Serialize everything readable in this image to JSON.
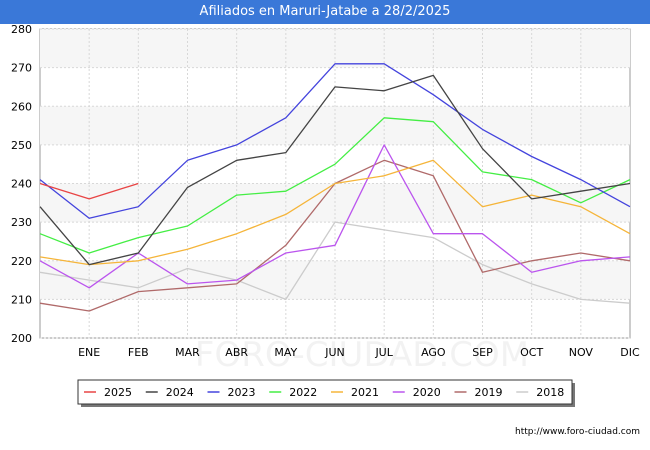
{
  "title": "Afiliados en Maruri-Jatabe a 28/2/2025",
  "source": "http://www.foro-ciudad.com",
  "watermark": "FORO-CIUDAD.COM",
  "chart_data": {
    "type": "line",
    "title": "Afiliados en Maruri-Jatabe a 28/2/2025",
    "x": [
      "",
      "ENE",
      "FEB",
      "MAR",
      "ABR",
      "MAY",
      "JUN",
      "JUL",
      "AGO",
      "SEP",
      "OCT",
      "NOV",
      "DIC"
    ],
    "ylim": [
      200,
      280
    ],
    "yticks": [
      200,
      210,
      220,
      230,
      240,
      250,
      260,
      270,
      280
    ],
    "grid": true,
    "legend_position": "bottom",
    "series": [
      {
        "name": "2025",
        "color": "#e84444",
        "values": [
          240,
          236,
          240,
          null,
          null,
          null,
          null,
          null,
          null,
          null,
          null,
          null,
          null
        ]
      },
      {
        "name": "2024",
        "color": "#444444",
        "values": [
          234,
          219,
          222,
          239,
          246,
          248,
          265,
          264,
          268,
          249,
          236,
          238,
          240
        ]
      },
      {
        "name": "2023",
        "color": "#4444dd",
        "values": [
          241,
          231,
          234,
          246,
          250,
          257,
          271,
          271,
          263,
          254,
          247,
          241,
          234
        ]
      },
      {
        "name": "2022",
        "color": "#44ee44",
        "values": [
          227,
          222,
          226,
          229,
          237,
          238,
          245,
          257,
          256,
          243,
          241,
          235,
          241
        ]
      },
      {
        "name": "2021",
        "color": "#f5b53a",
        "values": [
          221,
          219,
          220,
          223,
          227,
          232,
          240,
          242,
          246,
          234,
          237,
          234,
          227
        ]
      },
      {
        "name": "2020",
        "color": "#bb55ee",
        "values": [
          220,
          213,
          222,
          214,
          215,
          222,
          224,
          250,
          227,
          227,
          217,
          220,
          221
        ]
      },
      {
        "name": "2019",
        "color": "#b06a6a",
        "values": [
          209,
          207,
          212,
          213,
          214,
          224,
          240,
          246,
          242,
          217,
          220,
          222,
          220
        ]
      },
      {
        "name": "2018",
        "color": "#cccccc",
        "values": [
          217,
          215,
          213,
          218,
          215,
          210,
          230,
          228,
          226,
          219,
          214,
          210,
          209
        ]
      }
    ]
  }
}
